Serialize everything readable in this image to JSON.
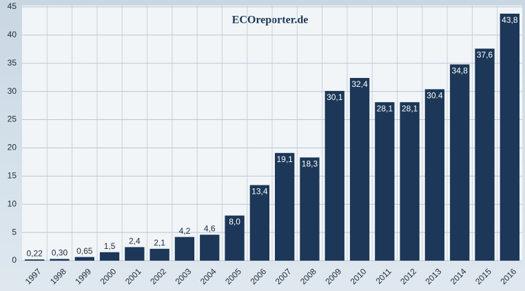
{
  "chart_data": {
    "type": "bar",
    "logo": "ECOreporter.de",
    "categories": [
      "1997",
      "1998",
      "1999",
      "2000",
      "2001",
      "2002",
      "2003",
      "2004",
      "2005",
      "2006",
      "2007",
      "2008",
      "2009",
      "2010",
      "2011",
      "2012",
      "2013",
      "2014",
      "2015",
      "2016"
    ],
    "values": [
      0.22,
      0.3,
      0.65,
      1.5,
      2.4,
      2.1,
      4.2,
      4.6,
      8.0,
      13.4,
      19.1,
      18.3,
      30.1,
      32.4,
      28.1,
      28.1,
      30.4,
      34.8,
      37.6,
      43.8
    ],
    "value_labels": [
      "0,22",
      "0,30",
      "0,65",
      "1,5",
      "2,4",
      "2,1",
      "4,2",
      "4,6",
      "8,0",
      "13,4",
      "19,1",
      "18,3",
      "30,1",
      "32,4",
      "28,1",
      "28,1",
      "30.4",
      "34,8",
      "37,6",
      "43,8"
    ],
    "color": "#1c3757",
    "ylim": [
      0,
      45
    ],
    "yticks": [
      0,
      5,
      10,
      15,
      20,
      25,
      30,
      35,
      40,
      45
    ],
    "grid": true
  }
}
